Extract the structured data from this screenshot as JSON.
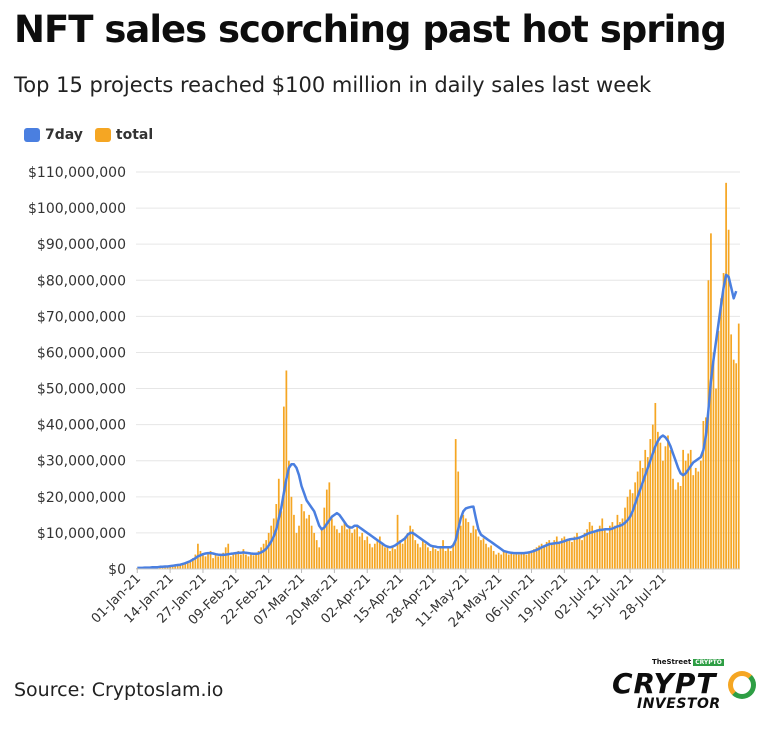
{
  "header": {
    "title": "NFT sales scorching past hot spring",
    "subtitle": "Top 15 projects reached $100 million in daily sales last week"
  },
  "footer": {
    "source": "Source: Cryptoslam.io",
    "logo_top": "TheStreet",
    "logo_tag": "CRYPTO",
    "logo_main": "CRYPT",
    "logo_sub": "INVESTOR"
  },
  "colors": {
    "line": "#4a7fe0",
    "bar": "#f5a623",
    "grid": "#e6e6e6",
    "text": "#333333"
  },
  "chart_data": {
    "type": "bar",
    "legend": [
      {
        "name": "7day",
        "color": "#4a7fe0"
      },
      {
        "name": "total",
        "color": "#f5a623"
      }
    ],
    "legend_position": "top-left",
    "x_tick_labels": [
      "01-Jan-21",
      "14-Jan-21",
      "27-Jan-21",
      "09-Feb-21",
      "22-Feb-21",
      "07-Mar-21",
      "20-Mar-21",
      "02-Apr-21",
      "15-Apr-21",
      "28-Apr-21",
      "11-May-21",
      "24-May-21",
      "06-Jun-21",
      "19-Jun-21",
      "02-Jul-21",
      "15-Jul-21",
      "28-Jul-21"
    ],
    "y_tick_labels": [
      "$0",
      "$10,000,000",
      "$20,000,000",
      "$30,000,000",
      "$40,000,000",
      "$50,000,000",
      "$60,000,000",
      "$70,000,000",
      "$80,000,000",
      "$90,000,000",
      "$100,000,000",
      "$110,000,000"
    ],
    "ylim": [
      0,
      110000000
    ],
    "grid": true,
    "total_daily_usd_millions": [
      0.3,
      0.3,
      0.4,
      0.4,
      0.5,
      0.5,
      0.6,
      0.5,
      0.6,
      0.7,
      0.7,
      0.8,
      0.8,
      0.9,
      1.0,
      1.0,
      1.2,
      1.1,
      1.5,
      1.8,
      2.0,
      2.2,
      3.0,
      4.0,
      7.0,
      5.0,
      4.0,
      3.5,
      4.5,
      5.0,
      3.0,
      4.0,
      3.5,
      3.8,
      4.5,
      6.0,
      7.0,
      3.5,
      4.0,
      4.5,
      5.0,
      4.0,
      5.5,
      4.0,
      3.5,
      4.0,
      3.8,
      4.2,
      5.0,
      6.0,
      7.0,
      8.0,
      10.0,
      12.0,
      14.0,
      18.0,
      25.0,
      16.0,
      45.0,
      55.0,
      30.0,
      20.0,
      15.0,
      10.0,
      12.0,
      18.0,
      16.0,
      14.0,
      15.0,
      12.0,
      10.0,
      8.0,
      6.0,
      11.0,
      17.0,
      22.0,
      24.0,
      14.0,
      12.0,
      11.0,
      10.0,
      12.0,
      13.0,
      11.0,
      12.0,
      10.0,
      11.0,
      12.0,
      9.0,
      10.0,
      8.0,
      9.0,
      7.0,
      6.0,
      7.0,
      8.0,
      9.0,
      7.0,
      6.0,
      6.5,
      5.0,
      6.0,
      5.5,
      15.0,
      8.0,
      7.0,
      9.0,
      10.0,
      12.0,
      11.0,
      8.0,
      7.0,
      6.0,
      8.0,
      7.0,
      6.0,
      5.0,
      6.0,
      5.5,
      5.0,
      6.0,
      8.0,
      5.0,
      6.0,
      5.0,
      7.0,
      36.0,
      27.0,
      12.0,
      15.0,
      14.0,
      13.0,
      10.0,
      12.0,
      11.0,
      9.0,
      8.0,
      8.5,
      7.0,
      6.0,
      6.5,
      5.0,
      4.0,
      4.5,
      4.0,
      5.0,
      4.5,
      4.0,
      4.2,
      4.0,
      4.5,
      4.0,
      4.3,
      4.5,
      4.0,
      4.8,
      5.0,
      5.5,
      6.0,
      6.5,
      7.0,
      6.0,
      7.5,
      8.0,
      7.0,
      8.0,
      9.0,
      7.0,
      8.5,
      9.0,
      8.0,
      8.0,
      7.5,
      9.0,
      10.0,
      9.0,
      8.0,
      10.0,
      11.0,
      13.0,
      12.0,
      10.0,
      11.0,
      12.0,
      14.0,
      11.0,
      10.0,
      12.0,
      13.0,
      12.0,
      15.0,
      13.0,
      14.0,
      17.0,
      20.0,
      22.0,
      21.0,
      24.0,
      27.0,
      30.0,
      28.0,
      33.0,
      31.0,
      36.0,
      40.0,
      46.0,
      38.0,
      35.0,
      30.0,
      34.0,
      37.0,
      33.0,
      25.0,
      22.0,
      24.0,
      23.0,
      33.0,
      30.0,
      32.0,
      33.0,
      26.0,
      28.0,
      27.0,
      30.0,
      41.0,
      42.0,
      80.0,
      93.0,
      60.0,
      50.0,
      66.0,
      75.0,
      82.0,
      107.0,
      94.0,
      65.0,
      58.0,
      57.0,
      68.0
    ],
    "seven_day_avg_usd_millions": [
      0.3,
      0.3,
      0.3,
      0.4,
      0.4,
      0.4,
      0.5,
      0.5,
      0.5,
      0.6,
      0.6,
      0.7,
      0.7,
      0.8,
      0.9,
      1.0,
      1.1,
      1.2,
      1.4,
      1.6,
      1.9,
      2.2,
      2.6,
      3.0,
      3.5,
      3.8,
      4.1,
      4.3,
      4.4,
      4.4,
      4.3,
      4.1,
      4.0,
      3.9,
      3.9,
      4.0,
      4.1,
      4.2,
      4.3,
      4.4,
      4.5,
      4.5,
      4.6,
      4.5,
      4.4,
      4.3,
      4.2,
      4.2,
      4.3,
      4.6,
      5.0,
      5.6,
      6.5,
      7.6,
      9.0,
      11.0,
      14.0,
      17.0,
      21.0,
      25.0,
      28.0,
      29.0,
      29.0,
      28.0,
      26.0,
      23.0,
      21.0,
      19.0,
      18.0,
      17.0,
      16.0,
      14.0,
      12.0,
      11.0,
      11.5,
      12.5,
      13.5,
      14.5,
      15.0,
      15.5,
      15.0,
      14.0,
      13.0,
      12.0,
      11.5,
      11.5,
      12.0,
      12.0,
      11.5,
      11.0,
      10.5,
      10.0,
      9.5,
      9.0,
      8.5,
      8.0,
      7.5,
      7.0,
      6.5,
      6.2,
      6.0,
      6.2,
      6.5,
      7.0,
      7.5,
      8.0,
      8.5,
      9.5,
      10.0,
      10.0,
      9.5,
      9.0,
      8.5,
      8.0,
      7.5,
      7.0,
      6.5,
      6.3,
      6.2,
      6.0,
      6.0,
      6.0,
      6.0,
      6.0,
      6.0,
      6.5,
      8.0,
      11.0,
      14.0,
      16.0,
      16.8,
      17.0,
      17.2,
      17.3,
      14.0,
      11.0,
      9.5,
      9.0,
      8.5,
      8.0,
      7.5,
      7.0,
      6.5,
      6.0,
      5.5,
      5.0,
      4.8,
      4.6,
      4.5,
      4.4,
      4.4,
      4.4,
      4.4,
      4.4,
      4.5,
      4.6,
      4.8,
      5.0,
      5.3,
      5.6,
      6.0,
      6.3,
      6.6,
      6.9,
      7.0,
      7.1,
      7.2,
      7.3,
      7.5,
      7.7,
      8.0,
      8.2,
      8.3,
      8.4,
      8.5,
      8.7,
      9.0,
      9.3,
      9.7,
      10.0,
      10.2,
      10.4,
      10.6,
      10.8,
      10.9,
      11.0,
      11.0,
      11.0,
      11.2,
      11.5,
      11.8,
      12.0,
      12.3,
      12.8,
      13.5,
      14.5,
      16.0,
      18.0,
      20.0,
      22.0,
      24.0,
      26.0,
      28.0,
      30.0,
      32.0,
      34.0,
      35.5,
      36.5,
      37.0,
      36.5,
      35.5,
      34.0,
      32.0,
      30.0,
      28.0,
      26.5,
      26.0,
      26.5,
      27.5,
      28.5,
      29.5,
      30.0,
      30.5,
      31.0,
      33.0,
      37.0,
      44.0,
      52.0,
      58.0,
      63.0,
      68.0,
      73.0,
      78.0,
      81.5,
      81.0,
      78.0,
      75.0,
      77.0
    ]
  }
}
